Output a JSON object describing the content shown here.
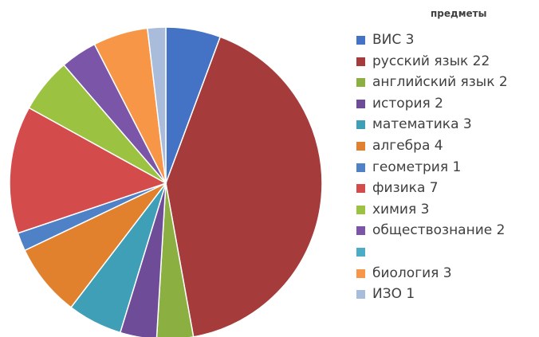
{
  "chart_data": {
    "type": "pie",
    "legend_title": "предметы",
    "legend_position": "right",
    "categories": [
      "ВИС 3",
      "русский язык 22",
      "английский язык 2",
      "история 2",
      "математика 3",
      "алгебра 4",
      "геометрия 1",
      "физика 7",
      "химия 3",
      "обществознание 2",
      "",
      "биология 3",
      "ИЗО 1"
    ],
    "values": [
      3,
      22,
      2,
      2,
      3,
      4,
      1,
      7,
      3,
      2,
      0,
      3,
      1
    ],
    "colors": [
      "#4472c4",
      "#a53b3b",
      "#8bb041",
      "#6e4c98",
      "#3e9fb6",
      "#e2812d",
      "#4f81c7",
      "#d44b4b",
      "#9bc341",
      "#7a55a8",
      "#4bacc6",
      "#f79646",
      "#a9bcdc"
    ]
  }
}
